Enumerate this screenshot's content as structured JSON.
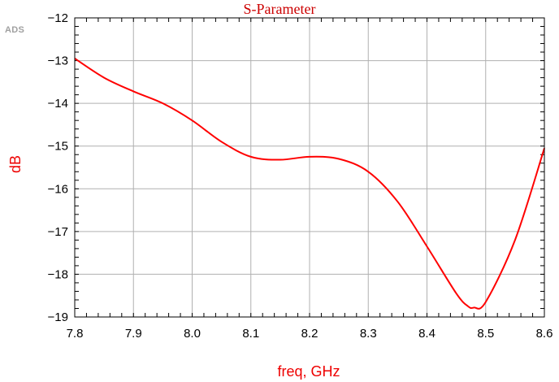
{
  "watermark": "ADS",
  "chart_data": {
    "type": "line",
    "title": "S-Parameter",
    "xlabel": "freq, GHz",
    "ylabel": "dB",
    "xlim": [
      7.8,
      8.6
    ],
    "ylim": [
      -19,
      -12
    ],
    "xticks": [
      "7.8",
      "7.9",
      "8.0",
      "8.1",
      "8.2",
      "8.3",
      "8.4",
      "8.5",
      "8.6"
    ],
    "yticks": [
      "-12",
      "-13",
      "-14",
      "-15",
      "-16",
      "-17",
      "-18",
      "-19"
    ],
    "grid": true,
    "series": [
      {
        "color": "#ff0000",
        "x": [
          7.8,
          7.85,
          7.9,
          7.95,
          8.0,
          8.05,
          8.1,
          8.15,
          8.2,
          8.25,
          8.3,
          8.35,
          8.4,
          8.45,
          8.47,
          8.48,
          8.5,
          8.55,
          8.6
        ],
        "y": [
          -12.95,
          -13.4,
          -13.72,
          -14.0,
          -14.4,
          -14.9,
          -15.25,
          -15.32,
          -15.25,
          -15.3,
          -15.6,
          -16.3,
          -17.35,
          -18.45,
          -18.75,
          -18.78,
          -18.65,
          -17.2,
          -15.05
        ]
      }
    ]
  },
  "colors": {
    "title": "#cc0000",
    "axis_label": "#ee0000",
    "series": "#ff0000",
    "grid": "#b0b0b0",
    "frame": "#000000"
  }
}
